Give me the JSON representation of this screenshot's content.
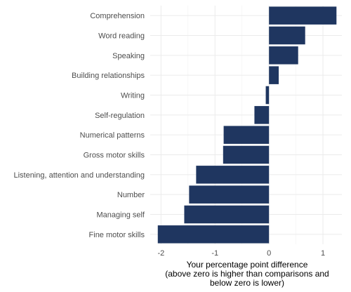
{
  "chart_data": {
    "type": "bar",
    "orientation": "horizontal",
    "categories": [
      "Comprehension",
      "Word reading",
      "Speaking",
      "Building relationships",
      "Writing",
      "Self-regulation",
      "Numerical patterns",
      "Gross motor skills",
      "Listening, attention and understanding",
      "Number",
      "Managing self",
      "Fine motor skills"
    ],
    "values": [
      1.25,
      0.67,
      0.54,
      0.18,
      -0.06,
      -0.27,
      -0.84,
      -0.85,
      -1.35,
      -1.48,
      -1.57,
      -2.06
    ],
    "xlabel_lines": [
      "Your percentage point difference",
      "(above zero is higher than comparisons and",
      "below zero is lower)"
    ],
    "xticks": [
      -2,
      -1,
      0,
      1
    ],
    "xlim": [
      -2.2,
      1.35
    ],
    "bar_color": "#1f3660",
    "grid": true
  }
}
